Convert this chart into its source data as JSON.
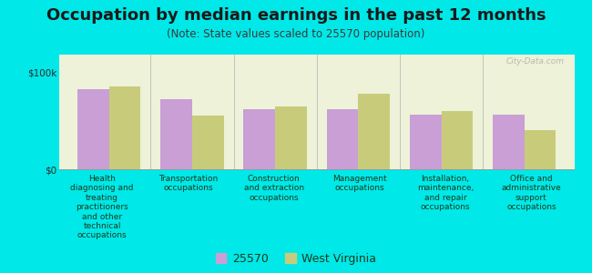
{
  "title": "Occupation by median earnings in the past 12 months",
  "subtitle": "(Note: State values scaled to 25570 population)",
  "background_color": "#00e8e8",
  "plot_bg_color": "#eef2d8",
  "categories": [
    "Health\ndiagnosing and\ntreating\npractitioners\nand other\ntechnical\noccupations",
    "Transportation\noccupations",
    "Construction\nand extraction\noccupations",
    "Management\noccupations",
    "Installation,\nmaintenance,\nand repair\noccupations",
    "Office and\nadministrative\nsupport\noccupations"
  ],
  "values_25570": [
    82000,
    72000,
    62000,
    62000,
    56000,
    56000
  ],
  "values_wv": [
    85000,
    55000,
    65000,
    78000,
    60000,
    40000
  ],
  "color_25570": "#c99fd6",
  "color_wv": "#c8cc7a",
  "ymax": 100000,
  "yticks": [
    0,
    100000
  ],
  "ytick_labels": [
    "$0",
    "$100k"
  ],
  "legend_label_25570": "25570",
  "legend_label_wv": "West Virginia",
  "bar_width": 0.38,
  "title_fontsize": 13,
  "subtitle_fontsize": 8.5,
  "tick_fontsize": 7.5,
  "label_fontsize": 6.5,
  "watermark": "City-Data.com"
}
